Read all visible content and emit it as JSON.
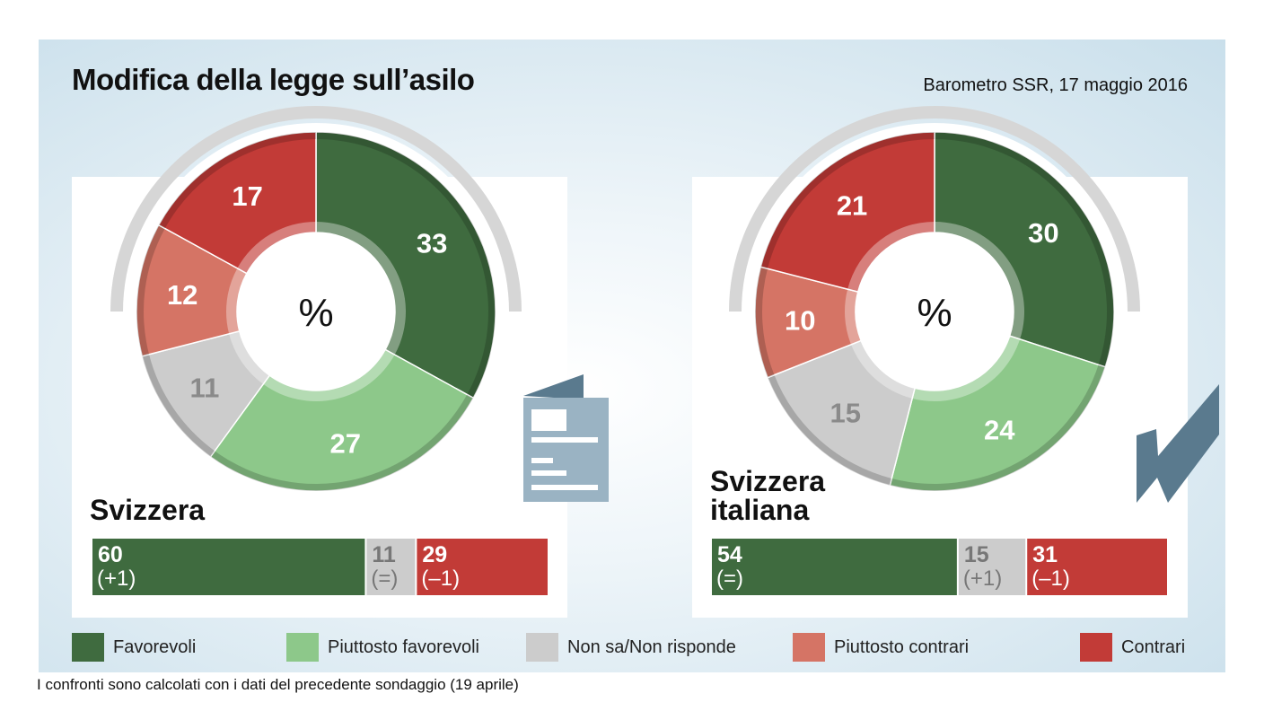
{
  "header": {
    "title": "Modifica della legge sull’asilo",
    "source": "Barometro SSR, 17 maggio 2016"
  },
  "footnote": "I confronti sono calcolati con i dati del precedente sondaggio (19 aprile)",
  "colors": {
    "favorevoli": "#3f6b3f",
    "piuttosto_favorevoli": "#8dc88a",
    "non_sa": "#cccccc",
    "piuttosto_contrari": "#d57465",
    "contrari": "#c23b37",
    "icon": "#5a7a8e",
    "doc_icon": "#9ab3c3"
  },
  "legend": [
    {
      "label": "Favorevoli",
      "color": "#3f6b3f"
    },
    {
      "label": "Piuttosto favorevoli",
      "color": "#8dc88a"
    },
    {
      "label": "Non sa/Non risponde",
      "color": "#cccccc"
    },
    {
      "label": "Piuttosto contrari",
      "color": "#d57465"
    },
    {
      "label": "Contrari",
      "color": "#c23b37"
    }
  ],
  "regions": [
    {
      "name": "Svizzera",
      "icon": "document-icon"
    },
    {
      "name": "Svizzera italiana",
      "icon": "checkmark-icon"
    }
  ],
  "chart_data": [
    {
      "type": "pie",
      "title": "Svizzera",
      "center_label": "%",
      "categories": [
        "Favorevoli",
        "Piuttosto favorevoli",
        "Non sa/Non risponde",
        "Piuttosto contrari",
        "Contrari"
      ],
      "values": [
        33,
        27,
        11,
        12,
        17
      ],
      "summary": {
        "categories": [
          "Favorevoli",
          "Non sa/Non risponde",
          "Contrari"
        ],
        "values": [
          60,
          11,
          29
        ],
        "changes": [
          "(+1)",
          "(=)",
          "(–1)"
        ]
      }
    },
    {
      "type": "pie",
      "title": "Svizzera italiana",
      "center_label": "%",
      "categories": [
        "Favorevoli",
        "Piuttosto favorevoli",
        "Non sa/Non risponde",
        "Piuttosto contrari",
        "Contrari"
      ],
      "values": [
        30,
        24,
        15,
        10,
        21
      ],
      "summary": {
        "categories": [
          "Favorevoli",
          "Non sa/Non risponde",
          "Contrari"
        ],
        "values": [
          54,
          15,
          31
        ],
        "changes": [
          "(=)",
          "(+1)",
          "(–1)"
        ]
      }
    }
  ]
}
